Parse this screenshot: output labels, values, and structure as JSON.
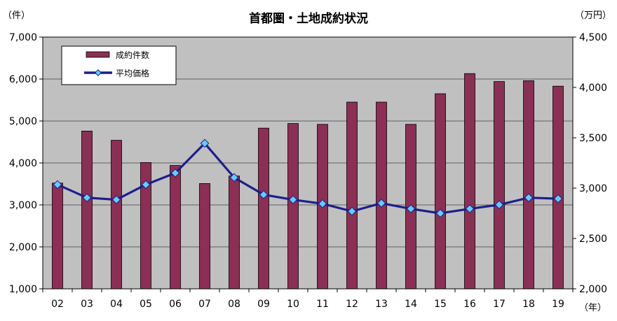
{
  "chart_data": {
    "type": "bar+line",
    "title": "首都圏・土地成約状況",
    "left_unit": "（件）",
    "right_unit": "（万円）",
    "x_unit": "（年）",
    "categories": [
      "02",
      "03",
      "04",
      "05",
      "06",
      "07",
      "08",
      "09",
      "10",
      "11",
      "12",
      "13",
      "14",
      "15",
      "16",
      "17",
      "18",
      "19"
    ],
    "series": [
      {
        "name": "成約件数",
        "type": "bar",
        "axis": "left",
        "color": "#8B2F55",
        "values": [
          3520,
          4760,
          4540,
          4010,
          3940,
          3510,
          3690,
          4830,
          4940,
          4920,
          5450,
          5450,
          4920,
          5650,
          6130,
          5940,
          5960,
          5830
        ]
      },
      {
        "name": "平均価格",
        "type": "line",
        "axis": "right",
        "color": "#1E1E8C",
        "marker_color": "#66CCFF",
        "values": [
          3035,
          2905,
          2885,
          3035,
          3150,
          3445,
          3105,
          2935,
          2885,
          2845,
          2770,
          2850,
          2795,
          2750,
          2795,
          2835,
          2905,
          2895
        ]
      }
    ],
    "y_left": {
      "min": 1000,
      "max": 7000,
      "step": 1000,
      "tick_labels": [
        "1,000",
        "2,000",
        "3,000",
        "4,000",
        "5,000",
        "6,000",
        "7,000"
      ]
    },
    "y_right": {
      "min": 2000,
      "max": 4500,
      "step": 500,
      "tick_labels": [
        "2,000",
        "2,500",
        "3,000",
        "3,500",
        "4,000",
        "4,500"
      ]
    },
    "plot_background": "#C0C0C0",
    "grid": true,
    "legend_position": "top-left"
  }
}
